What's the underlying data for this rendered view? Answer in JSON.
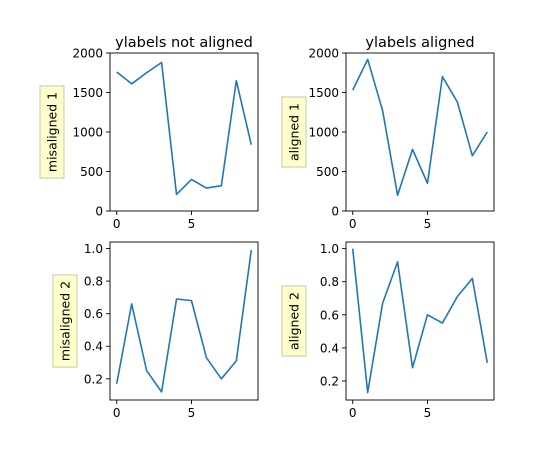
{
  "chart_data": [
    {
      "type": "line",
      "title": "ylabels not aligned",
      "ylabel": "misaligned 1",
      "x": [
        0,
        1,
        2,
        3,
        4,
        5,
        6,
        7,
        8,
        9
      ],
      "series": [
        {
          "values": [
            1760,
            1610,
            1750,
            1880,
            210,
            400,
            290,
            320,
            1650,
            840
          ]
        }
      ],
      "xlim": [
        -0.45,
        9.45
      ],
      "ylim": [
        0,
        2000
      ],
      "xticks": [
        0,
        5
      ],
      "yticks": [
        0,
        500,
        1000,
        1500,
        2000
      ],
      "ytick_labels": [
        "0",
        "500",
        "1000",
        "1500",
        "2000"
      ],
      "grid": false
    },
    {
      "type": "line",
      "title": "ylabels aligned",
      "ylabel": "aligned 1",
      "x": [
        0,
        1,
        2,
        3,
        4,
        5,
        6,
        7,
        8,
        9
      ],
      "series": [
        {
          "values": [
            1530,
            1920,
            1270,
            200,
            780,
            350,
            1700,
            1380,
            700,
            1000
          ]
        }
      ],
      "xlim": [
        -0.45,
        9.45
      ],
      "ylim": [
        0,
        2000
      ],
      "xticks": [
        0,
        5
      ],
      "yticks": [
        0,
        500,
        1000,
        1500,
        2000
      ],
      "ytick_labels": [
        "0",
        "500",
        "1000",
        "1500",
        "2000"
      ],
      "grid": false
    },
    {
      "type": "line",
      "title": "",
      "ylabel": "misaligned 2",
      "x": [
        0,
        1,
        2,
        3,
        4,
        5,
        6,
        7,
        8,
        9
      ],
      "series": [
        {
          "values": [
            0.17,
            0.66,
            0.25,
            0.12,
            0.69,
            0.68,
            0.33,
            0.2,
            0.31,
            0.99
          ]
        }
      ],
      "xlim": [
        -0.45,
        9.45
      ],
      "ylim": [
        0.07,
        1.04
      ],
      "xticks": [
        0,
        5
      ],
      "yticks": [
        0.2,
        0.4,
        0.6,
        0.8,
        1.0
      ],
      "ytick_labels": [
        "0.2",
        "0.4",
        "0.6",
        "0.8",
        "1.0"
      ],
      "grid": false
    },
    {
      "type": "line",
      "title": "",
      "ylabel": "aligned 2",
      "x": [
        0,
        1,
        2,
        3,
        4,
        5,
        6,
        7,
        8,
        9
      ],
      "series": [
        {
          "values": [
            1.0,
            0.13,
            0.67,
            0.92,
            0.28,
            0.6,
            0.55,
            0.71,
            0.82,
            0.31
          ]
        }
      ],
      "xlim": [
        -0.45,
        9.45
      ],
      "ylim": [
        0.085,
        1.04
      ],
      "xticks": [
        0,
        5
      ],
      "yticks": [
        0.2,
        0.4,
        0.6,
        0.8,
        1.0
      ],
      "ytick_labels": [
        "0.2",
        "0.4",
        "0.6",
        "0.8",
        "1.0"
      ],
      "grid": false
    }
  ],
  "colors": {
    "line": "#1f77b4",
    "label_box_fill": "#ffffcc",
    "label_box_edge": "#c8c8a8"
  }
}
